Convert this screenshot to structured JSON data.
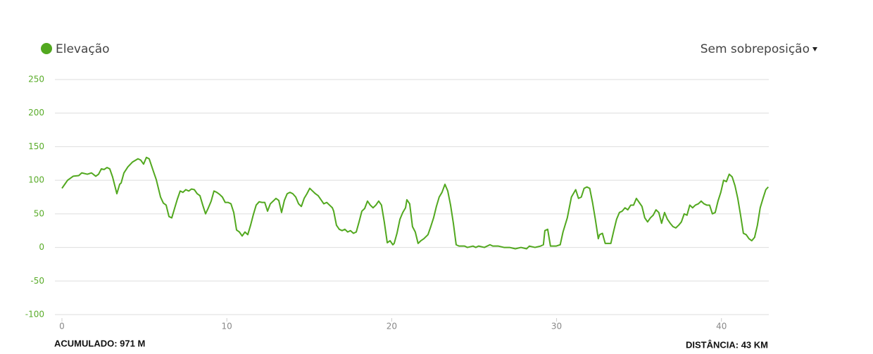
{
  "chart_data": {
    "type": "line",
    "overlay_option": "Sem sobreposição",
    "annotations": [
      "ACUMULADO: 971 M",
      "DISTÂNCIA: 43 KM"
    ],
    "x": [
      0,
      0.17,
      0.34,
      0.68,
      1.02,
      1.2,
      1.54,
      1.79,
      2.05,
      2.22,
      2.39,
      2.56,
      2.73,
      2.9,
      3.07,
      3.33,
      3.5,
      3.59,
      3.76,
      4.0,
      4.27,
      4.61,
      4.78,
      4.95,
      5.12,
      5.29,
      5.55,
      5.72,
      5.98,
      6.15,
      6.32,
      6.49,
      6.66,
      6.83,
      7.0,
      7.17,
      7.34,
      7.51,
      7.69,
      7.86,
      8.03,
      8.2,
      8.37,
      8.54,
      8.71,
      8.88,
      9.05,
      9.22,
      9.39,
      9.56,
      9.73,
      9.9,
      10.08,
      10.25,
      10.42,
      10.59,
      10.76,
      10.93,
      11.1,
      11.27,
      11.44,
      11.61,
      11.78,
      11.96,
      12.13,
      12.3,
      12.47,
      12.64,
      12.81,
      12.98,
      13.15,
      13.32,
      13.49,
      13.66,
      13.83,
      14.0,
      14.18,
      14.35,
      14.52,
      14.69,
      14.86,
      15.03,
      15.2,
      15.37,
      15.54,
      15.71,
      15.88,
      16.06,
      16.23,
      16.4,
      16.48,
      16.65,
      16.82,
      16.99,
      17.16,
      17.33,
      17.5,
      17.68,
      17.85,
      18.02,
      18.19,
      18.36,
      18.53,
      18.7,
      18.87,
      19.04,
      19.21,
      19.38,
      19.55,
      19.73,
      19.9,
      20.07,
      20.15,
      20.32,
      20.5,
      20.67,
      20.84,
      20.92,
      21.09,
      21.26,
      21.43,
      21.6,
      21.77,
      21.95,
      22.2,
      22.37,
      22.54,
      22.71,
      22.88,
      23.05,
      23.23,
      23.4,
      23.57,
      23.74,
      23.91,
      24.08,
      24.42,
      24.59,
      24.93,
      25.1,
      25.27,
      25.62,
      25.96,
      26.13,
      26.47,
      26.81,
      27.15,
      27.5,
      27.84,
      28.18,
      28.35,
      28.69,
      29.03,
      29.2,
      29.29,
      29.46,
      29.63,
      29.97,
      30.22,
      30.39,
      30.65,
      30.9,
      31.16,
      31.33,
      31.5,
      31.67,
      31.84,
      32.01,
      32.18,
      32.35,
      32.53,
      32.61,
      32.78,
      32.95,
      33.12,
      33.29,
      33.47,
      33.64,
      33.81,
      33.98,
      34.15,
      34.32,
      34.5,
      34.67,
      34.84,
      35.01,
      35.18,
      35.35,
      35.52,
      35.69,
      35.86,
      36.03,
      36.2,
      36.37,
      36.55,
      36.72,
      36.89,
      37.06,
      37.23,
      37.4,
      37.57,
      37.74,
      37.91,
      38.08,
      38.25,
      38.42,
      38.6,
      38.77,
      38.94,
      39.11,
      39.28,
      39.45,
      39.62,
      39.79,
      39.96,
      40.13,
      40.3,
      40.47,
      40.65,
      40.82,
      40.99,
      41.16,
      41.33,
      41.5,
      41.67,
      41.84,
      42.01,
      42.18,
      42.35,
      42.52,
      42.69,
      42.84
    ],
    "series": [
      {
        "name": "Elevação",
        "color": "#52a81f",
        "values": [
          88,
          94,
          100,
          106,
          107,
          111,
          109,
          111,
          106,
          109,
          117,
          116,
          119,
          117,
          105,
          80,
          94,
          96,
          111,
          120,
          127,
          132,
          130,
          124,
          134,
          132,
          113,
          101,
          75,
          66,
          63,
          46,
          44,
          58,
          72,
          84,
          82,
          86,
          84,
          87,
          86,
          80,
          77,
          63,
          50,
          59,
          69,
          84,
          82,
          79,
          75,
          67,
          67,
          65,
          52,
          26,
          23,
          17,
          23,
          19,
          33,
          49,
          63,
          68,
          67,
          67,
          54,
          65,
          69,
          73,
          70,
          52,
          70,
          80,
          82,
          80,
          75,
          65,
          61,
          73,
          80,
          88,
          84,
          80,
          77,
          71,
          65,
          67,
          63,
          59,
          54,
          33,
          27,
          25,
          27,
          23,
          25,
          21,
          23,
          38,
          54,
          58,
          69,
          63,
          59,
          63,
          69,
          63,
          38,
          7,
          10,
          4,
          6,
          21,
          42,
          52,
          59,
          71,
          65,
          31,
          23,
          6,
          10,
          13,
          19,
          31,
          44,
          61,
          75,
          82,
          94,
          84,
          63,
          36,
          4,
          2,
          2,
          0,
          2,
          0,
          2,
          0,
          4,
          2,
          2,
          0,
          0,
          -2,
          0,
          -2,
          2,
          0,
          2,
          4,
          25,
          27,
          2,
          2,
          4,
          23,
          44,
          75,
          86,
          73,
          75,
          88,
          90,
          88,
          67,
          42,
          13,
          19,
          21,
          6,
          6,
          6,
          25,
          42,
          52,
          54,
          59,
          56,
          63,
          63,
          73,
          67,
          61,
          44,
          38,
          44,
          48,
          56,
          52,
          36,
          52,
          42,
          36,
          31,
          29,
          33,
          38,
          50,
          48,
          63,
          59,
          63,
          65,
          69,
          65,
          63,
          63,
          50,
          52,
          69,
          82,
          100,
          98,
          109,
          105,
          92,
          73,
          48,
          21,
          19,
          13,
          10,
          15,
          33,
          59,
          73,
          86,
          90
        ]
      }
    ],
    "xlim": [
      0,
      43
    ],
    "xticks": [
      0,
      10,
      20,
      30,
      40
    ],
    "ylim": [
      -100,
      250
    ],
    "yticks": [
      -100,
      -50,
      0,
      50,
      100,
      150,
      200,
      250
    ],
    "grid": true
  }
}
